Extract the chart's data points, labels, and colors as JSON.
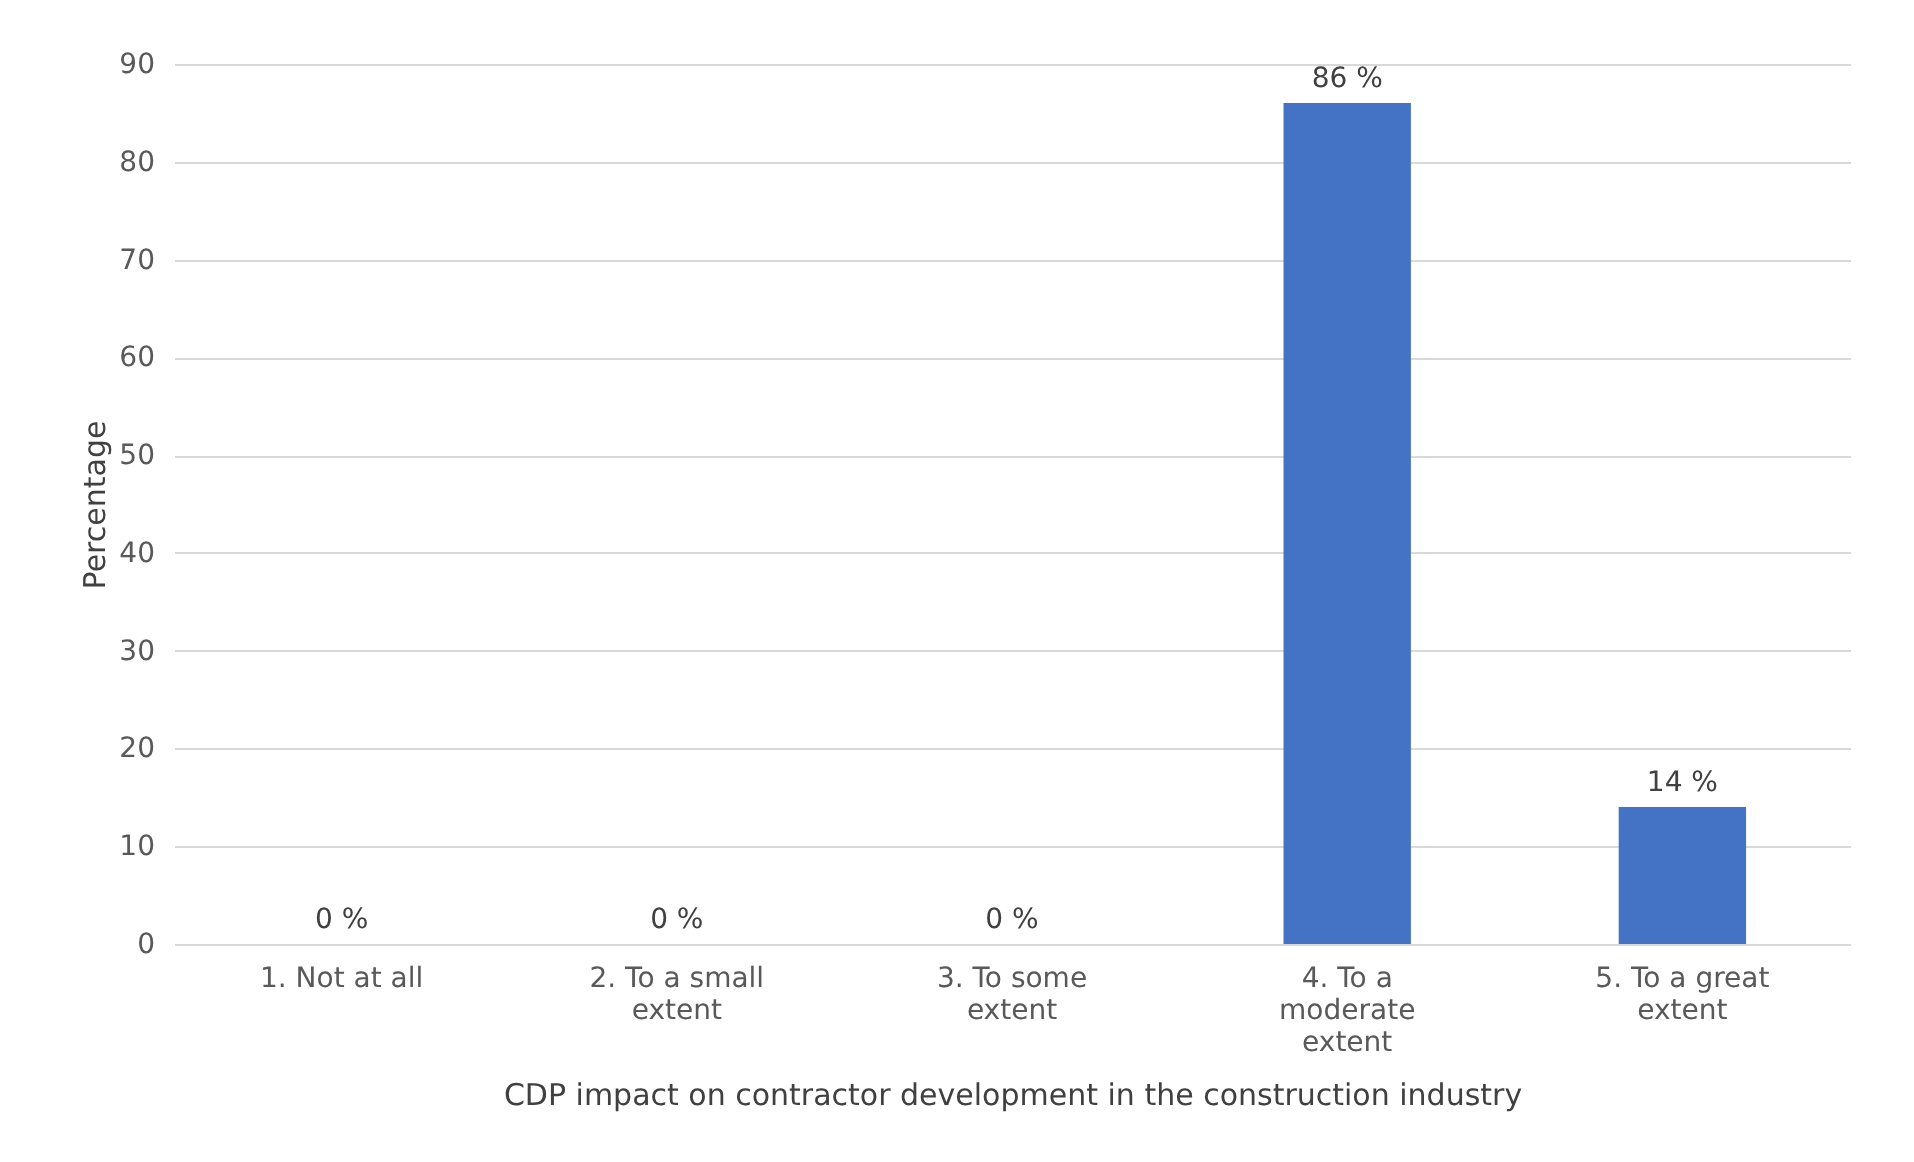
{
  "chart_data": {
    "type": "bar",
    "categories": [
      "1. Not at all",
      "2. To a small extent",
      "3. To some extent",
      "4. To a moderate extent",
      "5. To a great extent"
    ],
    "values": [
      0,
      0,
      0,
      86,
      14
    ],
    "value_labels": [
      "0 %",
      "0 %",
      "0 %",
      "86 %",
      "14 %"
    ],
    "color": "#4472c4",
    "xlabel": "CDP impact on contractor development in the construction industry",
    "ylabel": "Percentage",
    "ylim": [
      0,
      90
    ],
    "yticks": [
      0,
      10,
      20,
      30,
      40,
      50,
      60,
      70,
      80,
      90
    ],
    "grid": "y"
  }
}
